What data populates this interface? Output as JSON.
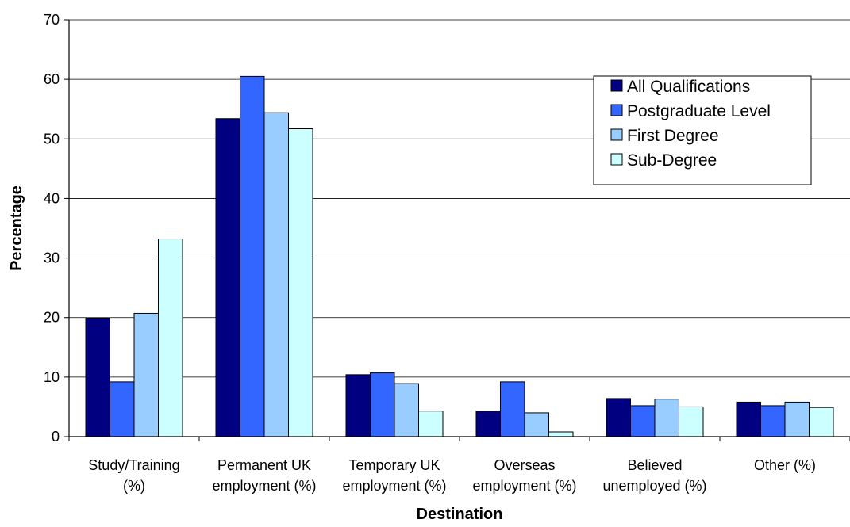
{
  "chart_data": {
    "type": "bar",
    "title": "",
    "xlabel": "Destination",
    "ylabel": "Percentage",
    "ylim": [
      0,
      70
    ],
    "yticks": [
      0,
      10,
      20,
      30,
      40,
      50,
      60,
      70
    ],
    "grid": "horizontal",
    "legend_position": "top-right",
    "categories": [
      [
        "Study/Training",
        "(%)"
      ],
      [
        "Permanent UK",
        "employment (%)"
      ],
      [
        "Temporary UK",
        "employment (%)"
      ],
      [
        "Overseas",
        "employment (%)"
      ],
      [
        "Believed",
        "unemployed (%)"
      ],
      [
        "Other (%)"
      ]
    ],
    "series": [
      {
        "name": "All Qualifications",
        "color": "#000080",
        "values": [
          19.9,
          53.4,
          10.4,
          4.3,
          6.4,
          5.8
        ]
      },
      {
        "name": "Postgraduate Level",
        "color": "#3366FF",
        "values": [
          9.2,
          60.5,
          10.7,
          9.2,
          5.2,
          5.2
        ]
      },
      {
        "name": "First Degree",
        "color": "#99CCFF",
        "values": [
          20.7,
          54.4,
          8.9,
          4.0,
          6.3,
          5.8
        ]
      },
      {
        "name": "Sub-Degree",
        "color": "#CCFFFF",
        "values": [
          33.2,
          51.7,
          4.3,
          0.8,
          5.0,
          4.9
        ]
      }
    ]
  }
}
